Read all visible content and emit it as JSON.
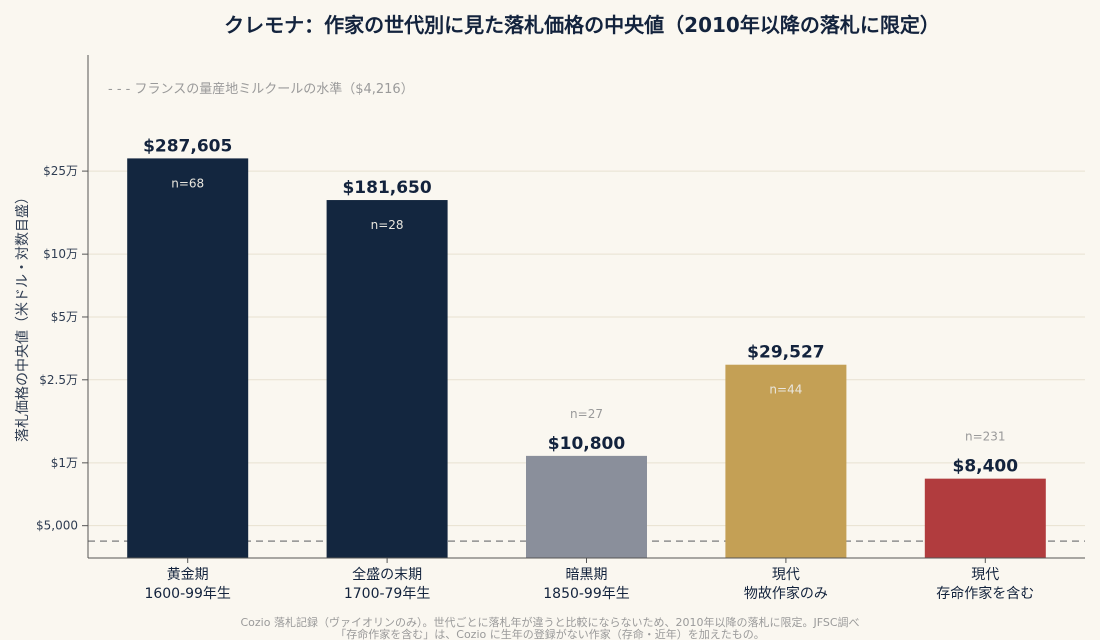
{
  "chart_data": {
    "type": "bar",
    "title": "クレモナ：作家の世代別に見た落札価格の中央値（2010年以降の落札に限定）",
    "ylabel": "落札価格の中央値（米ドル・対数目盛）",
    "yscale": "log",
    "ylim": [
      3500,
      900000
    ],
    "yticks": [
      {
        "value": 5000,
        "label": "$5,000"
      },
      {
        "value": 10000,
        "label": "$1万"
      },
      {
        "value": 25000,
        "label": "$2.5万"
      },
      {
        "value": 50000,
        "label": "$5万"
      },
      {
        "value": 100000,
        "label": "$10万"
      },
      {
        "value": 250000,
        "label": "$25万"
      }
    ],
    "categories": [
      [
        "黄金期",
        "1600-99年生"
      ],
      [
        "全盛の末期",
        "1700-79年生"
      ],
      [
        "暗黒期",
        "1850-99年生"
      ],
      [
        "現代",
        "物故作家のみ"
      ],
      [
        "現代",
        "存命作家を含む"
      ]
    ],
    "values": [
      287605,
      181650,
      10800,
      29527,
      8400
    ],
    "value_labels": [
      "$287,605",
      "$181,650",
      "$10,800",
      "$29,527",
      "$8,400"
    ],
    "n_labels": [
      "n=68",
      "n=28",
      "n=27",
      "n=44",
      "n=231"
    ],
    "colors": [
      "#13263f",
      "#13263f",
      "#8a8f9b",
      "#c4a055",
      "#b13c3e"
    ],
    "reference_line": {
      "value": 4216,
      "label": "- - -  フランスの量産地ミルクールの水準（$4,216）"
    },
    "grid": true,
    "legend": "none"
  },
  "source": [
    "Cozio 落札記録（ヴァイオリンのみ）。世代ごとに落札年が違うと比較にならないため、2010年以降の落札に限定。JFSC調べ",
    "「存命作家を含む」は、Cozio に生年の登録がない作家（存命・近年）を加えたもの。"
  ]
}
